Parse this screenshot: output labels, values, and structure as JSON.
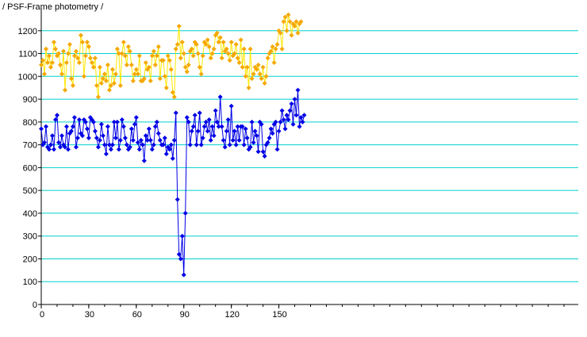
{
  "chart_data": {
    "type": "scatter",
    "title": "/ PSF-Frame photometry /",
    "xlabel": "",
    "ylabel": "",
    "xlim": [
      0,
      339
    ],
    "ylim": [
      0,
      1300
    ],
    "x_ticks": [
      0,
      30,
      60,
      90,
      120,
      150
    ],
    "y_ticks": [
      0,
      100,
      200,
      300,
      400,
      500,
      600,
      700,
      800,
      900,
      1000,
      1100,
      1200
    ],
    "grid": "horizontal",
    "grid_color": "#00d0d0",
    "colors": {
      "upper_series": "#f5a800",
      "upper_line": "#ffe800",
      "lower_series": "#0000e6",
      "lower_line": "#0000e6"
    },
    "series": [
      {
        "values": [
          1050,
          1070,
          1010,
          1120,
          1060,
          1090,
          1040,
          1060,
          1150,
          1120,
          1090,
          1100,
          1050,
          1010,
          1110,
          940,
          1060,
          1100,
          1140,
          990,
          960,
          1090,
          1110,
          1080,
          1060,
          1180,
          1150,
          1000,
          1090,
          1150,
          1130,
          1080,
          1060,
          1040,
          1080,
          960,
          910,
          1040,
          970,
          990,
          1010,
          980,
          1050,
          940,
          960,
          1030,
          970,
          1010,
          1120,
          1100,
          960,
          1100,
          1150,
          1090,
          1050,
          1130,
          1110,
          1050,
          980,
          1010,
          1030,
          1010,
          1090,
          980,
          980,
          990,
          1060,
          1030,
          1040,
          980,
          1090,
          1110,
          1050,
          1090,
          1130,
          990,
          1070,
          1070,
          1000,
          950,
          1090,
          1070,
          1030,
          930,
          910,
          1120,
          1140,
          1220,
          1080,
          1150,
          1100,
          1040,
          1020,
          1050,
          1110,
          1120,
          1090,
          1150,
          1140,
          1100,
          1040,
          1010,
          1090,
          1150,
          1140,
          1160,
          1130,
          1080,
          1100,
          1120,
          1180,
          1190,
          1150,
          1170,
          1080,
          1150,
          1110,
          1120,
          1100,
          1070,
          1150,
          1090,
          1100,
          1140,
          1080,
          1060,
          1160,
          1040,
          1120,
          1000,
          1040,
          950,
          1120,
          990,
          1010,
          1040,
          1030,
          1050,
          1010,
          990,
          1040,
          970,
          1000,
          1080,
          1100,
          1110,
          1130,
          1060,
          1120,
          1140,
          1200,
          1190,
          1120,
          1240,
          1260,
          1200,
          1270,
          1240,
          1180,
          1230,
          1220,
          1240,
          1190,
          1230,
          1240
        ]
      },
      {
        "values": [
          770,
          700,
          710,
          780,
          690,
          680,
          700,
          740,
          680,
          810,
          830,
          710,
          690,
          740,
          700,
          690,
          780,
          680,
          750,
          760,
          780,
          820,
          690,
          730,
          810,
          750,
          740,
          810,
          800,
          770,
          730,
          820,
          810,
          800,
          760,
          730,
          690,
          720,
          790,
          740,
          700,
          660,
          780,
          700,
          680,
          700,
          800,
          730,
          800,
          680,
          720,
          810,
          780,
          730,
          700,
          680,
          690,
          770,
          720,
          790,
          820,
          710,
          680,
          720,
          700,
          630,
          740,
          720,
          770,
          720,
          680,
          700,
          780,
          800,
          750,
          720,
          700,
          700,
          730,
          660,
          690,
          680,
          700,
          640,
          720,
          840,
          460,
          220,
          200,
          300,
          130,
          400,
          820,
          800,
          700,
          760,
          780,
          830,
          700,
          760,
          840,
          700,
          730,
          780,
          800,
          760,
          810,
          720,
          780,
          740,
          850,
          800,
          780,
          910,
          780,
          720,
          690,
          760,
          810,
          700,
          870,
          720,
          760,
          700,
          780,
          720,
          780,
          780,
          700,
          770,
          730,
          680,
          690,
          800,
          710,
          760,
          740,
          670,
          800,
          790,
          670,
          650,
          700,
          710,
          730,
          770,
          750,
          790,
          800,
          680,
          760,
          800,
          850,
          810,
          770,
          830,
          810,
          850,
          880,
          790,
          900,
          830,
          940,
          780,
          820,
          800,
          830
        ]
      }
    ]
  }
}
